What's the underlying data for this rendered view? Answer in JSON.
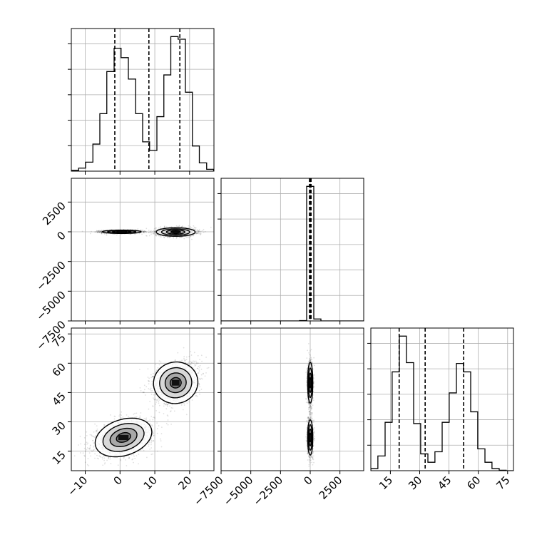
{
  "chart_data": {
    "type": "corner",
    "title": "",
    "parameters": [
      {
        "name": "",
        "range": [
          -14,
          27
        ],
        "ticks": [
          -10,
          0,
          10,
          20
        ]
      },
      {
        "name": "",
        "range": [
          -7500,
          4500
        ],
        "ticks": [
          -7500,
          -5000,
          -2500,
          0,
          2500
        ]
      },
      {
        "name": "",
        "range": [
          5,
          78
        ],
        "ticks": [
          15,
          30,
          45,
          60,
          75
        ]
      }
    ],
    "grid": true,
    "diagonal_histograms": [
      {
        "parameter": 0,
        "quantiles": [
          -1.5,
          8.3,
          17.2
        ],
        "bin_edges": [
          -14.0,
          -11.9,
          -9.9,
          -7.8,
          -5.8,
          -3.8,
          -1.7,
          0.3,
          2.4,
          4.5,
          6.5,
          8.5,
          10.6,
          12.6,
          14.6,
          16.7,
          18.8,
          20.8,
          22.8,
          24.9,
          26.9
        ],
        "counts": [
          2,
          8,
          24,
          72,
          153,
          265,
          327,
          302,
          245,
          153,
          78,
          55,
          145,
          256,
          358,
          351,
          210,
          67,
          22,
          5
        ]
      },
      {
        "parameter": 1,
        "quantiles": [
          -60,
          0,
          70
        ],
        "bin_edges": [
          -7500,
          -6900,
          -6300,
          -5700,
          -5100,
          -4500,
          -3900,
          -3300,
          -2700,
          -2100,
          -1500,
          -900,
          -300,
          300,
          900,
          1500,
          2100,
          2700,
          3300,
          3900,
          4500
        ],
        "counts": [
          0,
          0,
          0,
          0,
          0,
          0,
          0,
          0,
          0,
          0,
          0,
          8,
          3490,
          50,
          0,
          0,
          0,
          0,
          0,
          0
        ]
      },
      {
        "parameter": 2,
        "quantiles": [
          19.5,
          32.8,
          52.5
        ],
        "bin_edges": [
          5.0,
          8.6,
          12.3,
          15.9,
          19.6,
          23.2,
          26.9,
          30.5,
          34.2,
          37.8,
          41.5,
          45.1,
          48.8,
          52.4,
          56.1,
          59.7,
          63.4,
          67.0,
          70.7,
          74.3,
          78.0
        ],
        "counts": [
          5,
          35,
          115,
          235,
          320,
          257,
          112,
          40,
          20,
          45,
          115,
          185,
          255,
          235,
          140,
          52,
          20,
          5,
          1,
          0
        ]
      }
    ],
    "joint_distributions": [
      {
        "x_parameter": 0,
        "y_parameter": 1,
        "modes": [
          {
            "x_mean": 0.5,
            "y_mean": 0,
            "x_sd": 2.8,
            "y_sd": 70,
            "weight": 0.5
          },
          {
            "x_mean": 16,
            "y_mean": -20,
            "x_sd": 2.8,
            "y_sd": 180,
            "weight": 0.5
          }
        ]
      },
      {
        "x_parameter": 0,
        "y_parameter": 2,
        "modes": [
          {
            "x_mean": 1,
            "y_mean": 22,
            "x_sd": 4.2,
            "y_sd": 4.6,
            "corr": 0.35,
            "weight": 0.5
          },
          {
            "x_mean": 16,
            "y_mean": 50,
            "x_sd": 3.2,
            "y_sd": 5.3,
            "corr": 0.25,
            "weight": 0.5
          }
        ]
      },
      {
        "x_parameter": 1,
        "y_parameter": 2,
        "modes": [
          {
            "x_mean": 0,
            "y_mean": 22,
            "x_sd": 110,
            "y_sd": 4.5,
            "weight": 0.5
          },
          {
            "x_mean": 0,
            "y_mean": 50,
            "x_sd": 110,
            "y_sd": 5.2,
            "weight": 0.5
          }
        ]
      }
    ]
  }
}
